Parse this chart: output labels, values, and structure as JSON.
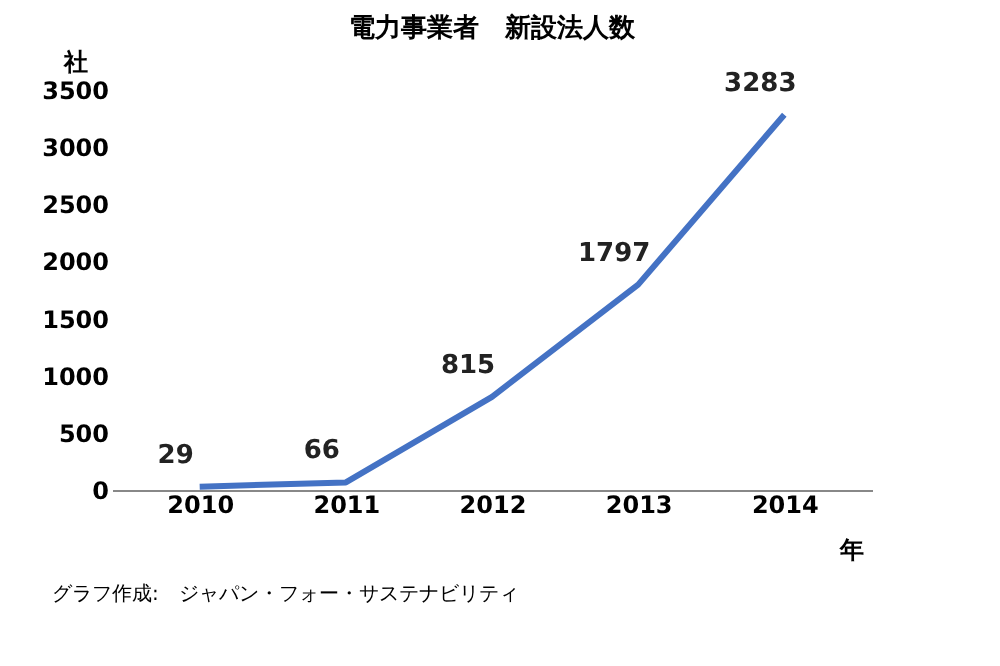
{
  "chart_data": {
    "type": "line",
    "title": "電力事業者　新設法人数",
    "ylabel": "社",
    "xlabel": "年",
    "categories": [
      "2010",
      "2011",
      "2012",
      "2013",
      "2014"
    ],
    "series": [
      {
        "color": "#4472c4",
        "values": [
          29,
          66,
          815,
          1797,
          3283
        ]
      }
    ],
    "ylim": [
      0,
      3500
    ],
    "yticks": [
      0,
      500,
      1000,
      1500,
      2000,
      2500,
      3000,
      3500
    ],
    "data_labels": true,
    "grid": false,
    "marker": "none",
    "line_style": "solid",
    "annotations": [
      "グラフ作成:　ジャパン・フォー・サステナビリティ"
    ]
  }
}
